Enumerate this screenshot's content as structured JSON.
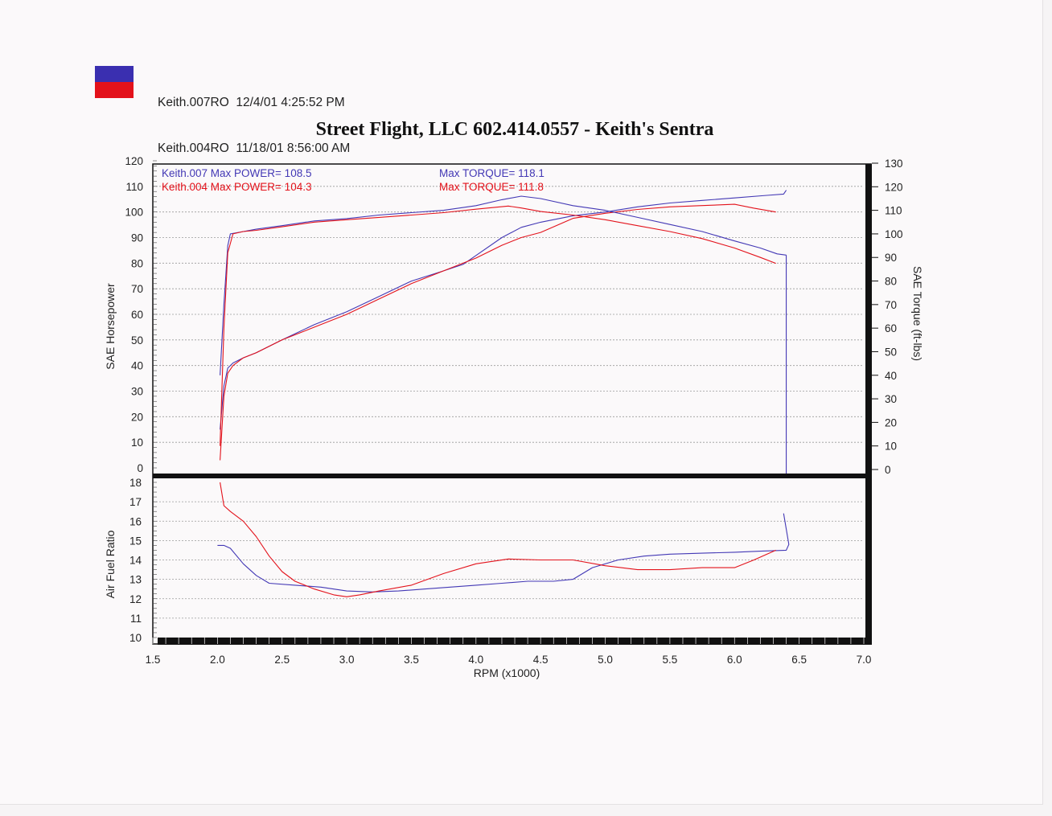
{
  "legend": {
    "runs": [
      {
        "file": "Keith.007RO",
        "date": "12/4/01",
        "time": "4:25:52 PM",
        "color": "#3a2fb0"
      },
      {
        "file": "Keith.004RO",
        "date": "11/18/01",
        "time": "8:56:00 AM",
        "color": "#e3121b"
      }
    ]
  },
  "title": "Street Flight, LLC 602.414.0557 - Keith's Sentra",
  "annotations": {
    "run1_label": "Keith.007  Max POWER= 108.5",
    "run2_label": "Keith.004  Max POWER= 104.3",
    "run1_torque": "Max TORQUE= 118.1",
    "run2_torque": "Max TORQUE= 111.8"
  },
  "chart_data": {
    "type": "line",
    "xlabel": "RPM (x1000)",
    "x_ticks": [
      "1.5",
      "2.0",
      "2.5",
      "3.0",
      "3.5",
      "4.0",
      "4.5",
      "5.0",
      "5.5",
      "6.0",
      "6.5",
      "7.0"
    ],
    "xlim": [
      1.5,
      7.0
    ],
    "upper_panel": {
      "ylabel_left": "SAE Horsepower",
      "ylabel_right": "SAE Torque (ft-lbs)",
      "ylim_left": [
        0,
        120
      ],
      "ylim_right": [
        0,
        130
      ],
      "left_ticks": [
        "0",
        "10",
        "20",
        "30",
        "40",
        "50",
        "60",
        "70",
        "80",
        "90",
        "100",
        "110",
        "120"
      ],
      "right_ticks": [
        "0",
        "10",
        "20",
        "30",
        "40",
        "50",
        "60",
        "70",
        "80",
        "90",
        "100",
        "110",
        "120",
        "130"
      ],
      "grid": true,
      "series": [
        {
          "name": "Keith.007",
          "metric": "power",
          "color": "#4338b5",
          "x": [
            2.02,
            2.05,
            2.08,
            2.12,
            2.2,
            2.3,
            2.5,
            2.75,
            3.0,
            3.25,
            3.5,
            3.75,
            3.9,
            4.0,
            4.2,
            4.35,
            4.5,
            4.75,
            5.0,
            5.25,
            5.5,
            5.75,
            6.0,
            6.25,
            6.38,
            6.4
          ],
          "y": [
            15,
            32,
            39,
            41,
            43,
            45,
            50,
            56,
            61,
            67,
            73,
            77,
            79.5,
            83,
            90,
            94,
            96,
            98.5,
            100,
            102,
            103.5,
            104.5,
            105.5,
            106.5,
            107,
            108.5
          ]
        },
        {
          "name": "Keith.004",
          "metric": "power",
          "color": "#e3121b",
          "x": [
            2.02,
            2.05,
            2.08,
            2.12,
            2.2,
            2.3,
            2.5,
            2.75,
            3.0,
            3.25,
            3.5,
            3.75,
            4.0,
            4.2,
            4.35,
            4.5,
            4.75,
            5.0,
            5.25,
            5.5,
            5.75,
            6.0,
            6.15,
            6.32
          ],
          "y": [
            3,
            28,
            37,
            40,
            43,
            45,
            50,
            55,
            60,
            66,
            72,
            77,
            82,
            87,
            90,
            92,
            97.5,
            99.5,
            101,
            102,
            102.5,
            103,
            101.5,
            100
          ]
        },
        {
          "name": "Keith.007",
          "metric": "torque",
          "color": "#4338b5",
          "x": [
            2.02,
            2.05,
            2.08,
            2.1,
            2.2,
            2.3,
            2.5,
            2.75,
            3.0,
            3.25,
            3.5,
            3.75,
            4.0,
            4.2,
            4.35,
            4.5,
            4.75,
            5.0,
            5.25,
            5.5,
            5.75,
            6.0,
            6.2,
            6.33,
            6.4
          ],
          "y": [
            40,
            70,
            95,
            100,
            101,
            102,
            103.5,
            105.5,
            106.5,
            108,
            109,
            110,
            112,
            114.5,
            116,
            115,
            112,
            110,
            107,
            104,
            101,
            97,
            94,
            91.5,
            91
          ]
        },
        {
          "name": "Keith.004",
          "metric": "torque",
          "color": "#e3121b",
          "x": [
            2.02,
            2.05,
            2.08,
            2.12,
            2.2,
            2.3,
            2.5,
            2.75,
            3.0,
            3.25,
            3.5,
            3.75,
            4.0,
            4.25,
            4.35,
            4.5,
            4.75,
            5.0,
            5.25,
            5.5,
            5.75,
            6.0,
            6.2,
            6.32
          ],
          "y": [
            10,
            60,
            92,
            100,
            101,
            101.5,
            103,
            105,
            106,
            107,
            108,
            109,
            110.5,
            111.8,
            111,
            109.5,
            108,
            106,
            103.5,
            101,
            98,
            94,
            90,
            87.5
          ]
        }
      ]
    },
    "lower_panel": {
      "ylabel": "Air Fuel Ratio",
      "ylim": [
        10,
        18
      ],
      "ticks": [
        "10",
        "11",
        "12",
        "13",
        "14",
        "15",
        "16",
        "17",
        "18"
      ],
      "grid": true,
      "series": [
        {
          "name": "Keith.007",
          "metric": "afr",
          "color": "#4338b5",
          "x": [
            2.0,
            2.05,
            2.1,
            2.2,
            2.3,
            2.4,
            2.6,
            2.8,
            3.0,
            3.2,
            3.4,
            3.6,
            3.8,
            4.0,
            4.2,
            4.4,
            4.6,
            4.75,
            4.9,
            5.1,
            5.3,
            5.5,
            5.75,
            6.0,
            6.2,
            6.4,
            6.42,
            6.38
          ],
          "y": [
            14.75,
            14.75,
            14.6,
            13.8,
            13.2,
            12.8,
            12.7,
            12.6,
            12.4,
            12.35,
            12.4,
            12.5,
            12.6,
            12.7,
            12.8,
            12.9,
            12.9,
            13.0,
            13.6,
            14.0,
            14.2,
            14.3,
            14.35,
            14.4,
            14.45,
            14.5,
            14.8,
            16.4
          ]
        },
        {
          "name": "Keith.004",
          "metric": "afr",
          "color": "#e3121b",
          "x": [
            2.02,
            2.05,
            2.1,
            2.2,
            2.3,
            2.4,
            2.5,
            2.6,
            2.75,
            2.9,
            3.0,
            3.1,
            3.25,
            3.5,
            3.75,
            4.0,
            4.25,
            4.5,
            4.75,
            5.0,
            5.25,
            5.5,
            5.75,
            6.0,
            6.15,
            6.32
          ],
          "y": [
            18.0,
            16.8,
            16.5,
            16.0,
            15.2,
            14.2,
            13.4,
            12.9,
            12.5,
            12.2,
            12.1,
            12.2,
            12.4,
            12.7,
            13.3,
            13.8,
            14.05,
            14.0,
            14.0,
            13.7,
            13.5,
            13.5,
            13.6,
            13.6,
            14.0,
            14.5
          ]
        }
      ]
    }
  }
}
